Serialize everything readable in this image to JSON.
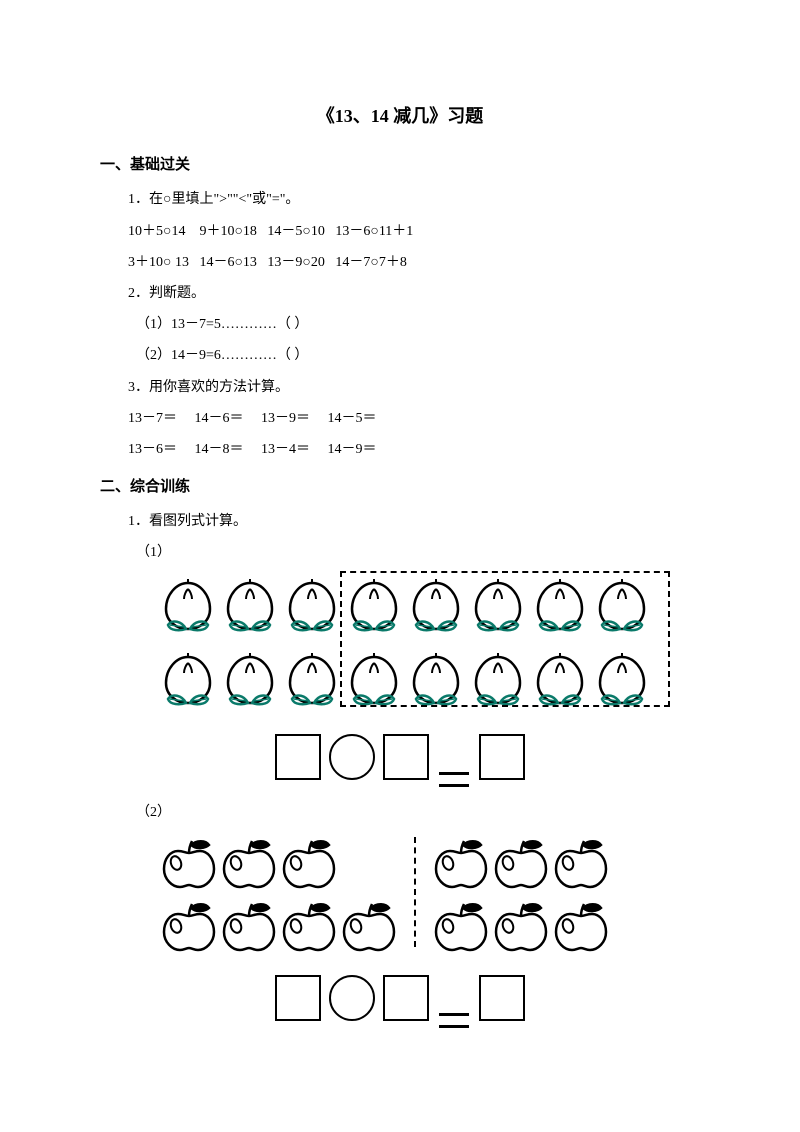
{
  "title": "《13、14 减几》习题",
  "sections": {
    "s1": {
      "heading": "一、基础过关",
      "q1_intro": "1．在○里填上\">\"\"<\"或\"=\"。",
      "q1_row1": "10＋5○14    9＋10○18   14－5○10   13－6○11＋1",
      "q1_row2": "3＋10○ 13   14－6○13   13－9○20   14－7○7＋8",
      "q2_intro": "2．判断题。",
      "q2_a": "（1）13－7=5…………（    ）",
      "q2_b": "（2）14－9=6…………（    ）",
      "q3_intro": "3．用你喜欢的方法计算。",
      "q3_row1": "13－7＝     14－6＝     13－9＝     14－5＝",
      "q3_row2": "13－6＝     14－8＝     13－4＝     14－9＝"
    },
    "s2": {
      "heading": "二、综合训练",
      "q1_intro": "1．看图列式计算。",
      "sub1": "（1）",
      "sub2": "（2）"
    }
  },
  "figures": {
    "peach": {
      "rows": 2,
      "cols": 8,
      "dashed_from_col": 3,
      "peach_fill": "#ffffff",
      "peach_stroke": "#000000",
      "leaf_stroke": "#0a7a6a"
    },
    "apple": {
      "left_rows": [
        3,
        4
      ],
      "right_rows": [
        3,
        3
      ],
      "apple_fill": "#ffffff",
      "apple_stroke": "#000000",
      "leaf_fill": "#000000"
    }
  },
  "colors": {
    "bg": "#ffffff",
    "text": "#000000"
  }
}
